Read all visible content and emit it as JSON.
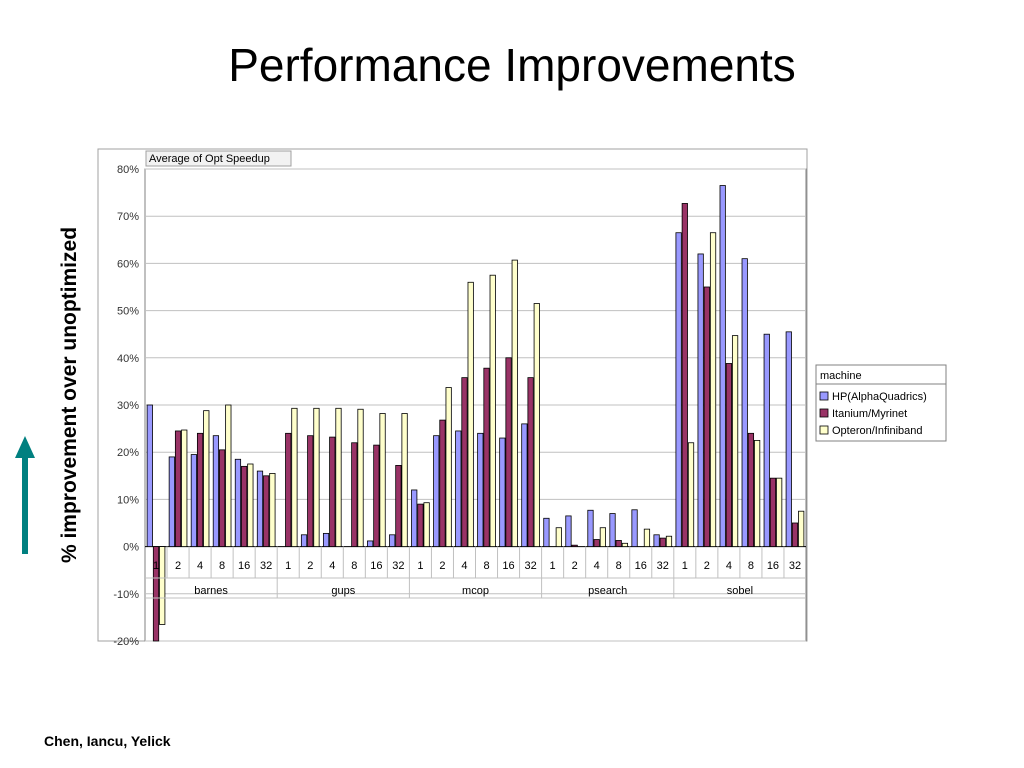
{
  "slide": {
    "title": "Performance Improvements",
    "y_caption": "% improvement over unoptimized",
    "footer": "Chen, Iancu, Yelick"
  },
  "chart_data": {
    "type": "bar",
    "title": "Average of Opt Speedup",
    "ylim": [
      -0.2,
      0.8
    ],
    "yticks": [
      -0.2,
      -0.1,
      0,
      0.1,
      0.2,
      0.3,
      0.4,
      0.5,
      0.6,
      0.7,
      0.8
    ],
    "ytick_labels": [
      "-20%",
      "-10%",
      "0%",
      "10%",
      "20%",
      "30%",
      "40%",
      "50%",
      "60%",
      "70%",
      "80%"
    ],
    "grid": true,
    "legend_position": "right",
    "legend_title": "machine",
    "groups": [
      {
        "label": "barnes",
        "categories": [
          "1",
          "2",
          "4",
          "8",
          "16",
          "32"
        ]
      },
      {
        "label": "gups",
        "categories": [
          "1",
          "2",
          "4",
          "8",
          "16",
          "32"
        ]
      },
      {
        "label": "mcop",
        "categories": [
          "1",
          "2",
          "4",
          "8",
          "16",
          "32"
        ]
      },
      {
        "label": "psearch",
        "categories": [
          "1",
          "2",
          "4",
          "8",
          "16",
          "32"
        ]
      },
      {
        "label": "sobel",
        "categories": [
          "1",
          "2",
          "4",
          "8",
          "16",
          "32"
        ]
      }
    ],
    "series": [
      {
        "name": "HP(AlphaQuadrics)",
        "color": "#9999ff",
        "values": [
          0.3,
          0.19,
          0.195,
          0.235,
          0.185,
          0.16,
          0.0,
          0.025,
          0.028,
          0.0,
          0.012,
          0.025,
          0.12,
          0.235,
          0.245,
          0.24,
          0.23,
          0.26,
          0.06,
          0.065,
          0.077,
          0.07,
          0.078,
          0.025,
          0.665,
          0.62,
          0.765,
          0.61,
          0.45,
          0.455
        ]
      },
      {
        "name": "Itanium/Myrinet",
        "color": "#993366",
        "values": [
          -0.2,
          0.245,
          0.24,
          0.205,
          0.17,
          0.15,
          0.24,
          0.235,
          0.232,
          0.22,
          0.215,
          0.172,
          0.09,
          0.268,
          0.358,
          0.378,
          0.4,
          0.358,
          0.0,
          0.003,
          0.015,
          0.013,
          0.0,
          0.018,
          0.727,
          0.55,
          0.388,
          0.24,
          0.145,
          0.05
        ]
      },
      {
        "name": "Opteron/Infiniband",
        "color": "#ffffcc",
        "values": [
          -0.165,
          0.247,
          0.288,
          0.3,
          0.175,
          0.155,
          0.293,
          0.293,
          0.293,
          0.291,
          0.282,
          0.282,
          0.093,
          0.337,
          0.56,
          0.575,
          0.607,
          0.515,
          0.04,
          0.0,
          0.04,
          0.007,
          0.037,
          0.022,
          0.22,
          0.665,
          0.447,
          0.225,
          0.145,
          0.075
        ]
      }
    ]
  }
}
